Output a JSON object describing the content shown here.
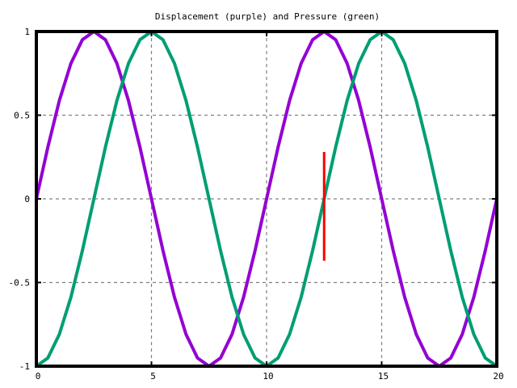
{
  "chart_data": {
    "type": "line",
    "title": "Displacement (purple) and Pressure (green)",
    "xlabel": "",
    "ylabel": "",
    "xlim": [
      0,
      20
    ],
    "ylim": [
      -1,
      1
    ],
    "xticks": [
      0,
      5,
      10,
      15,
      20
    ],
    "yticks": [
      -1,
      -0.5,
      0,
      0.5,
      1
    ],
    "ytick_labels": [
      "-1",
      "-0.5",
      "0",
      "0.5",
      "1"
    ],
    "xtick_labels": [
      "0",
      "5",
      "10",
      "15",
      "20"
    ],
    "grid": true,
    "legend": "none",
    "series": [
      {
        "color": "#9400d3",
        "x": [
          0,
          0.5,
          1,
          1.5,
          2,
          2.5,
          3,
          3.5,
          4,
          4.5,
          5,
          5.5,
          6,
          6.5,
          7,
          7.5,
          8,
          8.5,
          9,
          9.5,
          10,
          10.5,
          11,
          11.5,
          12,
          12.5,
          13,
          13.5,
          14,
          14.5,
          15,
          15.5,
          16,
          16.5,
          17,
          17.5,
          18,
          18.5,
          19,
          19.5,
          20
        ],
        "values": [
          0,
          0.309,
          0.588,
          0.809,
          0.951,
          1,
          0.951,
          0.809,
          0.588,
          0.309,
          0,
          -0.309,
          -0.588,
          -0.809,
          -0.951,
          -1,
          -0.951,
          -0.809,
          -0.588,
          -0.309,
          0,
          0.309,
          0.588,
          0.809,
          0.951,
          1,
          0.951,
          0.809,
          0.588,
          0.309,
          0,
          -0.309,
          -0.588,
          -0.809,
          -0.951,
          -1,
          -0.951,
          -0.809,
          -0.588,
          -0.309,
          0
        ]
      },
      {
        "color": "#009e73",
        "x": [
          0,
          0.5,
          1,
          1.5,
          2,
          2.5,
          3,
          3.5,
          4,
          4.5,
          5,
          5.5,
          6,
          6.5,
          7,
          7.5,
          8,
          8.5,
          9,
          9.5,
          10,
          10.5,
          11,
          11.5,
          12,
          12.5,
          13,
          13.5,
          14,
          14.5,
          15,
          15.5,
          16,
          16.5,
          17,
          17.5,
          18,
          18.5,
          19,
          19.5,
          20
        ],
        "values": [
          -1,
          -0.951,
          -0.809,
          -0.588,
          -0.309,
          0,
          0.309,
          0.588,
          0.809,
          0.951,
          1,
          0.951,
          0.809,
          0.588,
          0.309,
          0,
          -0.309,
          -0.588,
          -0.809,
          -0.951,
          -1,
          -0.951,
          -0.809,
          -0.588,
          -0.309,
          0,
          0.309,
          0.588,
          0.809,
          0.951,
          1,
          0.951,
          0.809,
          0.588,
          0.309,
          0,
          -0.309,
          -0.588,
          -0.809,
          -0.951,
          -1
        ]
      }
    ],
    "annotations": [
      {
        "type": "vertical-segment",
        "color": "#ff0000",
        "x": 12.5,
        "y_range": [
          -0.37,
          0.28
        ]
      }
    ],
    "colors": {
      "grid": "#808080",
      "axes": "#000000"
    }
  }
}
